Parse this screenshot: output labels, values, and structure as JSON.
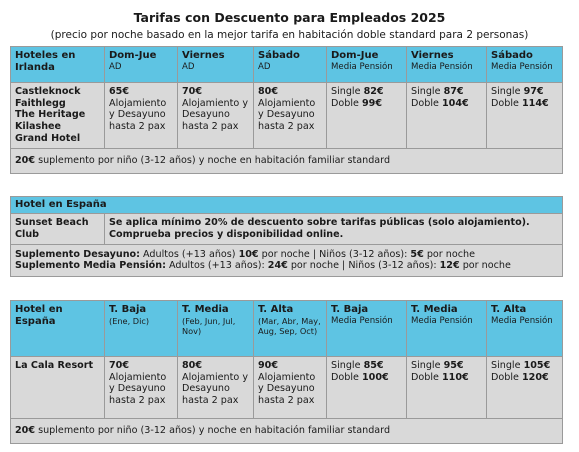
{
  "title": "Tarifas con Descuento para Empleados 2025",
  "subtitle": "(precio por noche basado en la mejor tarifa en habitación doble standard para 2 personas)",
  "ireland": {
    "header": [
      {
        "main": "Hoteles en Irlanda",
        "sub": ""
      },
      {
        "main": "Dom-Jue",
        "sub": "AD"
      },
      {
        "main": "Viernes",
        "sub": "AD"
      },
      {
        "main": "Sábado",
        "sub": "AD"
      },
      {
        "main": "Dom-Jue",
        "sub": "Media Pensión"
      },
      {
        "main": "Viernes",
        "sub": "Media Pensión"
      },
      {
        "main": "Sábado",
        "sub": "Media Pensión"
      }
    ],
    "hotels": [
      "Castleknock",
      "Faithlegg",
      "The Heritage",
      "Kilashee",
      "Grand Hotel"
    ],
    "ad_prices": [
      {
        "price": "65€",
        "desc": "Alojamiento y Desayuno hasta 2 pax"
      },
      {
        "price": "70€",
        "desc": "Alojamiento y Desayuno hasta 2 pax"
      },
      {
        "price": "80€",
        "desc": "Alojamiento y Desayuno hasta 2 pax"
      }
    ],
    "mp_prices": [
      {
        "single_label": "Single",
        "single": "82€",
        "double_label": "Doble",
        "double": "99€"
      },
      {
        "single_label": "Single",
        "single": "87€",
        "double_label": "Doble",
        "double": "104€"
      },
      {
        "single_label": "Single",
        "single": "97€",
        "double_label": "Doble",
        "double": "114€"
      }
    ],
    "note_amount": "20€",
    "note_text": " suplemento por niño (3-12 años) y noche en habitación familiar standard"
  },
  "spain_section": {
    "header": "Hotel en España",
    "hotel": "Sunset Beach Club",
    "info": "Se aplica mínimo 20% de descuento sobre tarifas públicas (solo alojamiento). Comprueba precios y disponibilidad online.",
    "breakfast_label": "Suplemento Desayuno:",
    "breakfast_adults": " Adultos (+13 años) ",
    "breakfast_adults_price": "10€",
    "breakfast_mid": " por noche | Niños (3-12 años): ",
    "breakfast_kids_price": "5€",
    "breakfast_end": " por noche",
    "halfboard_label": "Suplemento Media Pensión:",
    "halfboard_adults": " Adultos (+13 años): ",
    "halfboard_adults_price": "24€",
    "halfboard_mid": " por noche | Niños (3-12 años): ",
    "halfboard_kids_price": "12€",
    "halfboard_end": " por noche"
  },
  "lacala": {
    "header": [
      {
        "main": "Hotel en España",
        "sub": ""
      },
      {
        "main": "T. Baja",
        "sub": "(Ene, Dic)"
      },
      {
        "main": "T. Media",
        "sub": "(Feb, Jun, Jul, Nov)"
      },
      {
        "main": "T. Alta",
        "sub": "(Mar, Abr, May, Aug, Sep, Oct)"
      },
      {
        "main": "T. Baja",
        "sub": "Media Pensión"
      },
      {
        "main": "T. Media",
        "sub": "Media Pensión"
      },
      {
        "main": "T. Alta",
        "sub": "Media Pensión"
      }
    ],
    "hotel": "La Cala Resort",
    "ad_prices": [
      {
        "price": "70€",
        "desc": "Alojamiento y Desayuno hasta 2 pax"
      },
      {
        "price": "80€",
        "desc": "Alojamiento y Desayuno hasta 2 pax"
      },
      {
        "price": "90€",
        "desc": "Alojamiento y Desayuno hasta 2 pax"
      }
    ],
    "mp_prices": [
      {
        "single_label": "Single",
        "single": "85€",
        "double_label": "Doble",
        "double": "100€"
      },
      {
        "single_label": "Single",
        "single": "95€",
        "double_label": "Doble",
        "double": "110€"
      },
      {
        "single_label": "Single",
        "single": "105€",
        "double_label": "Doble",
        "double": "120€"
      }
    ],
    "note_amount": "20€",
    "note_text": " suplemento por niño (3-12 años) y noche en habitación familiar standard"
  },
  "colors": {
    "header_bg": "#5ec4e3",
    "body_bg": "#d9d9d9"
  }
}
